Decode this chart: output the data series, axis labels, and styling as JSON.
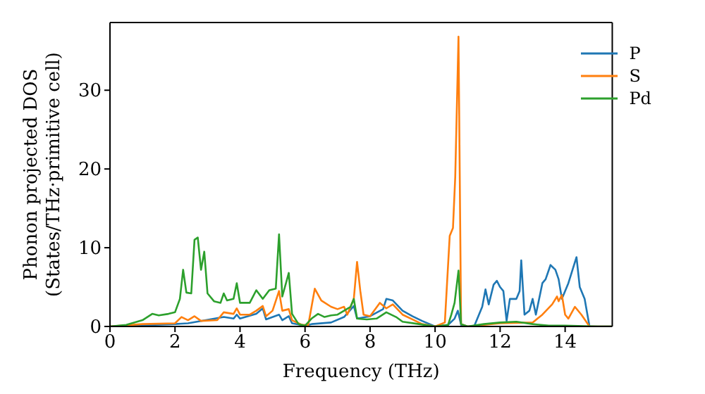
{
  "chart_data": {
    "type": "line",
    "xlabel": "Frequency (THz)",
    "ylabel": "Phonon projected DOS\n(States/THz·primitive cell)",
    "xlim": [
      0,
      15.45
    ],
    "ylim": [
      0,
      38.6
    ],
    "xticks": [
      0,
      2,
      4,
      6,
      8,
      10,
      12,
      14
    ],
    "yticks": [
      0,
      10,
      20,
      30
    ],
    "legend": "top right",
    "marker": "none",
    "line_style": "solid",
    "series": [
      {
        "name": "P",
        "color": "#1f77b4",
        "x": [
          0,
          2,
          2.4,
          3.5,
          3.8,
          3.9,
          4,
          4.5,
          4.7,
          4.8,
          5.2,
          5.3,
          5.5,
          5.6,
          6,
          6.2,
          6.8,
          7.2,
          7.5,
          7.6,
          8,
          8.4,
          8.5,
          8.7,
          9,
          9.3,
          9.6,
          10,
          10.4,
          10.6,
          10.7,
          10.8,
          11,
          11.2,
          11.45,
          11.55,
          11.65,
          11.8,
          11.9,
          12,
          12.1,
          12.2,
          12.3,
          12.5,
          12.6,
          12.65,
          12.75,
          12.9,
          13,
          13.1,
          13.3,
          13.4,
          13.55,
          13.7,
          13.8,
          13.9,
          14.1,
          14.25,
          14.35,
          14.45,
          14.6,
          14.75,
          15.45
        ],
        "values": [
          0,
          0.3,
          0.4,
          1.2,
          1,
          1.5,
          1,
          1.6,
          2.3,
          0.9,
          1.5,
          0.8,
          1.3,
          0.4,
          0.1,
          0.3,
          0.5,
          1.2,
          2.6,
          1,
          1.3,
          2.2,
          3.5,
          3.3,
          2,
          1.3,
          0.7,
          0,
          0.2,
          1,
          2,
          0.2,
          0,
          0,
          2.5,
          4.7,
          2.8,
          5.3,
          5.8,
          5,
          4.5,
          0.7,
          3.5,
          3.5,
          4.5,
          8.4,
          1.5,
          2,
          3.5,
          1.5,
          5.5,
          6,
          7.8,
          7.2,
          6,
          3.5,
          5.5,
          7.5,
          8.8,
          5,
          3.5,
          0,
          0
        ]
      },
      {
        "name": "S",
        "color": "#ff7f0e",
        "x": [
          0,
          1,
          2,
          2.2,
          2.4,
          2.6,
          2.8,
          3.3,
          3.5,
          3.8,
          3.9,
          4,
          4.3,
          4.5,
          4.7,
          4.8,
          5,
          5.2,
          5.3,
          5.5,
          5.6,
          5.9,
          6.1,
          6.3,
          6.5,
          6.8,
          7,
          7.2,
          7.3,
          7.5,
          7.6,
          7.7,
          7.8,
          8,
          8.3,
          8.5,
          8.7,
          9,
          9.3,
          9.6,
          10,
          10.3,
          10.45,
          10.55,
          10.62,
          10.72,
          10.8,
          11,
          12,
          13,
          13.3,
          13.6,
          13.75,
          13.8,
          13.9,
          14,
          14.1,
          14.3,
          14.5,
          14.75,
          15.45
        ],
        "values": [
          0,
          0.3,
          0.4,
          1.2,
          0.8,
          1.3,
          0.7,
          0.8,
          1.8,
          1.6,
          2.3,
          1.5,
          1.5,
          2,
          2.6,
          1.3,
          2,
          4.5,
          2,
          2.2,
          0.8,
          0.2,
          0.2,
          4.8,
          3.3,
          2.5,
          2.2,
          2.5,
          1.5,
          3.5,
          8.2,
          4.5,
          1.5,
          1.3,
          3,
          2.3,
          2.8,
          1.5,
          0.9,
          0.3,
          0,
          0.5,
          11.5,
          12.5,
          19,
          36.8,
          0.3,
          0,
          0.4,
          0.5,
          1.5,
          2.8,
          3.8,
          3.2,
          4,
          1.5,
          1,
          2.5,
          1.5,
          0,
          0
        ]
      },
      {
        "name": "Pd",
        "color": "#2ca02c",
        "x": [
          0,
          0.5,
          1,
          1.3,
          1.5,
          1.8,
          2,
          2.15,
          2.25,
          2.35,
          2.5,
          2.6,
          2.7,
          2.8,
          2.9,
          3,
          3.2,
          3.4,
          3.5,
          3.6,
          3.8,
          3.9,
          4,
          4.3,
          4.5,
          4.7,
          4.9,
          5.1,
          5.2,
          5.3,
          5.5,
          5.6,
          5.8,
          6,
          6.2,
          6.4,
          6.6,
          6.8,
          7,
          7.2,
          7.4,
          7.5,
          7.6,
          7.9,
          8.2,
          8.5,
          8.8,
          9,
          9.5,
          10,
          10.4,
          10.5,
          10.6,
          10.72,
          10.8,
          11,
          11.5,
          12,
          12.5,
          13,
          13.5,
          14,
          15,
          15.45
        ],
        "values": [
          0,
          0.2,
          0.8,
          1.6,
          1.4,
          1.6,
          1.8,
          3.5,
          7.2,
          4.3,
          4.2,
          11,
          11.3,
          7.2,
          9.5,
          4.2,
          3.2,
          3,
          4.2,
          3.3,
          3.5,
          5.5,
          3,
          3,
          4.6,
          3.5,
          4.6,
          4.8,
          11.7,
          3.8,
          6.8,
          1.6,
          0.3,
          0.1,
          1,
          1.6,
          1.2,
          1.4,
          1.5,
          2,
          2.5,
          3.5,
          1,
          0.9,
          1,
          1.8,
          1.2,
          0.6,
          0.3,
          0,
          0.2,
          1.5,
          3,
          7.1,
          0.3,
          0,
          0.3,
          0.5,
          0.6,
          0.3,
          0.1,
          0.1,
          0,
          0
        ]
      }
    ]
  }
}
